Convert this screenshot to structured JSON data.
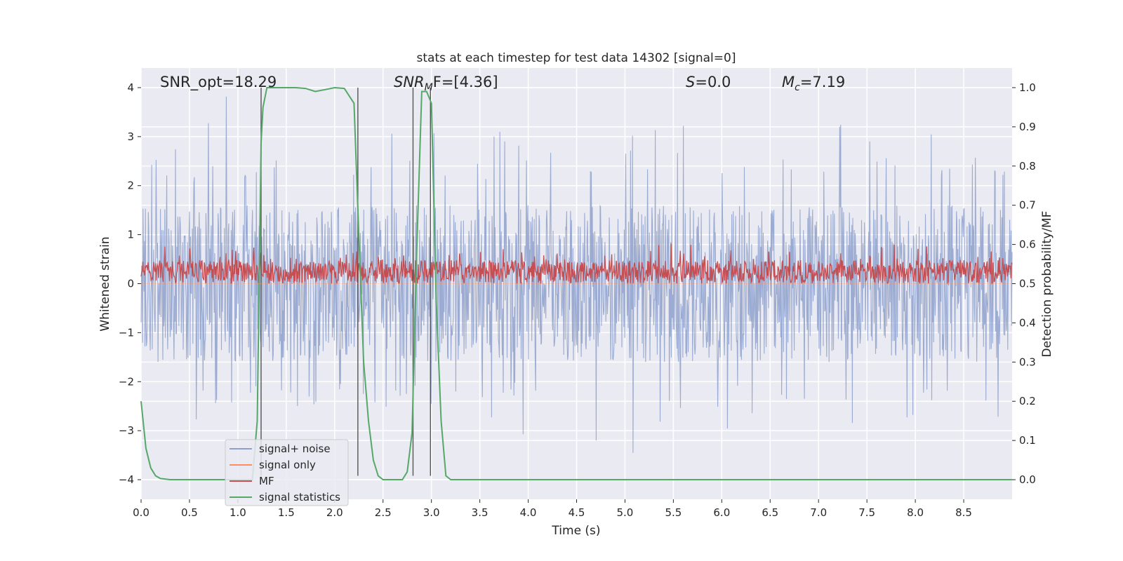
{
  "chart_data": {
    "type": "line",
    "title": "stats at each timestep for test data 14302 [signal=0]",
    "xlabel": "Time (s)",
    "ylabel_left": "Whitened strain",
    "ylabel_right": "Detection probability/MF",
    "xlim": [
      0.0,
      9.0
    ],
    "ylim_left": [
      -4.4,
      4.4
    ],
    "ylim_right": [
      -0.05,
      1.05
    ],
    "xticks": [
      "0.0",
      "0.5",
      "1.0",
      "1.5",
      "2.0",
      "2.5",
      "3.0",
      "3.5",
      "4.0",
      "4.5",
      "5.0",
      "5.5",
      "6.0",
      "6.5",
      "7.0",
      "7.5",
      "8.0",
      "8.5"
    ],
    "yticks_left": [
      "−4",
      "−3",
      "−2",
      "−1",
      "0",
      "1",
      "2",
      "3",
      "4"
    ],
    "yticks_right": [
      "0.0",
      "0.1",
      "0.2",
      "0.3",
      "0.4",
      "0.5",
      "0.6",
      "0.7",
      "0.8",
      "0.9",
      "1.0"
    ],
    "grid": true,
    "legend_position": "lower-left",
    "annotations": {
      "snr_opt": "SNR_opt=18.29",
      "snr_mf_base": "SNR",
      "snr_mf_sub": "M",
      "snr_mf_rest": "F=[4.36]",
      "s_label": "S",
      "s_value": "=0.0",
      "mc_base": "M",
      "mc_sub": "c",
      "mc_value": "=7.19"
    },
    "vertical_lines_x": [
      1.24,
      2.24,
      2.81,
      2.99
    ],
    "series": [
      {
        "name": "signal+ noise",
        "axis": "left",
        "color": "#8da0cb",
        "description_values": "noise band approx ±1.5 with spikes to ±3.9",
        "envelope_upper": [
          2.7,
          2.6,
          2.3,
          2.8,
          2.5,
          2.4,
          3.6,
          2.5,
          3.9,
          2.6,
          2.4,
          2.5,
          3.2,
          2.6,
          2.5,
          2.8,
          2.4,
          3.0,
          2.6,
          2.5,
          2.4,
          2.6,
          2.7,
          2.5,
          2.4,
          3.2,
          2.6,
          2.9,
          2.6,
          2.5,
          3.4,
          2.5,
          2.5,
          3.1,
          2.6,
          2.5,
          3.4,
          3.1,
          2.6,
          2.9,
          2.7,
          2.8,
          3.1,
          2.6,
          2.6,
          2.9,
          2.5,
          3.6,
          2.5,
          2.4,
          3.1,
          2.6,
          2.4,
          3.3,
          2.5,
          2.7,
          3.6,
          2.6,
          3.2,
          2.5,
          2.6,
          3.4,
          2.6,
          2.5,
          3.5,
          2.8,
          2.6,
          2.4,
          3.1,
          2.7,
          2.6,
          2.9,
          3.5,
          2.6,
          2.4,
          3.4,
          2.7,
          2.5,
          3.1,
          2.6,
          2.8,
          3.3,
          2.5,
          2.4,
          3.3,
          2.6,
          2.6,
          3.7,
          2.6,
          2.4
        ],
        "envelope_lower": [
          -2.3,
          -2.5,
          -2.8,
          -2.2,
          -2.5,
          -2.9,
          -2.4,
          -2.6,
          -3.0,
          -2.5,
          -2.3,
          -2.4,
          -3.1,
          -2.6,
          -2.4,
          -2.3,
          -2.8,
          -2.5,
          -2.6,
          -2.3,
          -2.4,
          -2.9,
          -2.5,
          -2.4,
          -2.6,
          -2.9,
          -2.4,
          -2.6,
          -2.3,
          -2.5,
          -2.8,
          -2.4,
          -2.3,
          -2.6,
          -3.4,
          -2.5,
          -2.9,
          -2.4,
          -2.3,
          -3.3,
          -2.5,
          -2.6,
          -3.2,
          -2.5,
          -2.4,
          -3.0,
          -2.6,
          -3.5,
          -2.5,
          -2.4,
          -3.9,
          -2.5,
          -2.3,
          -2.9,
          -2.4,
          -2.6,
          -2.8,
          -2.4,
          -2.5,
          -2.6,
          -3.0,
          -2.4,
          -2.3,
          -2.8,
          -2.6,
          -3.0,
          -2.4,
          -2.5,
          -2.7,
          -2.4,
          -3.0,
          -2.5,
          -2.5,
          -3.0,
          -2.4,
          -2.3,
          -2.8,
          -2.5,
          -2.4,
          -2.9,
          -2.3,
          -2.5,
          -2.6,
          -2.4,
          -2.7,
          -3.1,
          -3.4,
          -2.5,
          -2.9,
          -2.4
        ]
      },
      {
        "name": "signal only",
        "axis": "left",
        "color": "#fc8d62",
        "x": [
          0.0,
          9.0
        ],
        "values": [
          0.0,
          0.0
        ]
      },
      {
        "name": "MF",
        "axis": "right",
        "color": "#c44e52",
        "description_values": "fluctuates between 0.50 and 0.60, mean approx 0.54",
        "band": [
          0.5,
          0.6
        ]
      },
      {
        "name": "signal statistics",
        "axis": "right",
        "color": "#55a868",
        "x": [
          0.0,
          0.05,
          0.1,
          0.15,
          0.2,
          0.3,
          0.5,
          0.8,
          1.0,
          1.15,
          1.2,
          1.24,
          1.26,
          1.3,
          1.35,
          1.45,
          1.6,
          1.7,
          1.8,
          1.9,
          2.0,
          2.1,
          2.2,
          2.25,
          2.3,
          2.35,
          2.4,
          2.45,
          2.5,
          2.6,
          2.7,
          2.75,
          2.8,
          2.85,
          2.9,
          2.95,
          3.0,
          3.05,
          3.1,
          3.15,
          3.2,
          3.5,
          4.0,
          5.0,
          6.0,
          7.0,
          8.0,
          9.0
        ],
        "values": [
          0.2,
          0.08,
          0.03,
          0.01,
          0.003,
          0.0,
          0.0,
          0.0,
          0.0,
          0.0,
          0.15,
          0.86,
          0.95,
          1.0,
          1.0,
          1.0,
          1.0,
          0.998,
          0.99,
          0.995,
          1.0,
          0.998,
          0.96,
          0.62,
          0.3,
          0.15,
          0.05,
          0.01,
          0.0,
          0.0,
          0.0,
          0.02,
          0.12,
          0.6,
          0.99,
          0.99,
          0.96,
          0.45,
          0.15,
          0.01,
          0.0,
          0.0,
          0.0,
          0.0,
          0.0,
          0.0,
          0.0,
          0.0
        ]
      }
    ]
  }
}
